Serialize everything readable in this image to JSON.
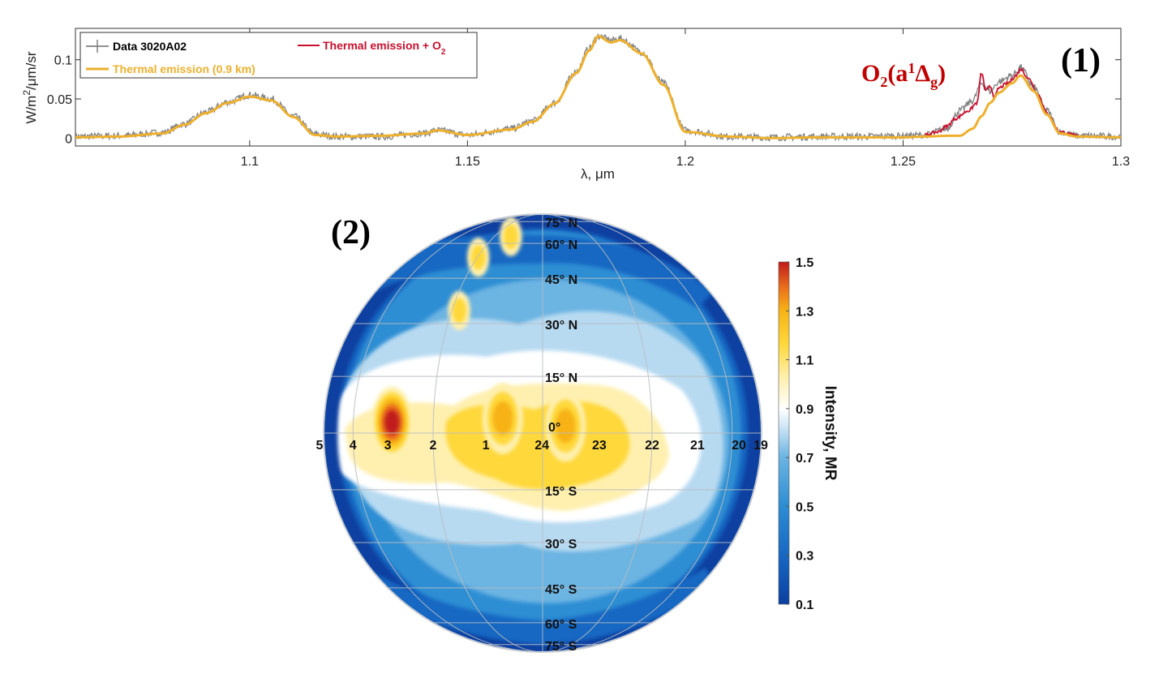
{
  "chart_data": [
    {
      "type": "line",
      "panel_label": "(1)",
      "xlabel": "λ, μm",
      "ylabel": "W/m²/μm/sr",
      "ylabel_parts": {
        "pre": "W/m",
        "sup": "2",
        "post": "/μm/sr"
      },
      "xlim": [
        1.06,
        1.3
      ],
      "ylim": [
        -0.01,
        0.14
      ],
      "xticks": [
        1.1,
        1.15,
        1.2,
        1.25,
        1.3
      ],
      "xtick_labels": [
        "1.1",
        "1.15",
        "1.2",
        "1.25",
        "1.3"
      ],
      "yticks": [
        0,
        0.05,
        0.1
      ],
      "ytick_labels": [
        "0",
        "0.05",
        "0.1"
      ],
      "grid": false,
      "legend_placement": "top-left",
      "annotation": {
        "text": "O2(a1Δg)",
        "parts": {
          "O": "O",
          "sub1": "2",
          "open": "(a",
          "sup": "1",
          "delta": "Δ",
          "sub2": "g",
          "close": ")"
        },
        "color": "#c00000",
        "near_x": 1.262
      },
      "series": [
        {
          "name": "Data 3020A02",
          "color": "#808080",
          "marker": "+",
          "x": [
            1.06,
            1.07,
            1.08,
            1.085,
            1.09,
            1.095,
            1.1,
            1.105,
            1.11,
            1.115,
            1.12,
            1.13,
            1.14,
            1.143,
            1.15,
            1.16,
            1.165,
            1.17,
            1.175,
            1.178,
            1.18,
            1.183,
            1.185,
            1.19,
            1.195,
            1.2,
            1.21,
            1.22,
            1.23,
            1.24,
            1.25,
            1.255,
            1.26,
            1.263,
            1.266,
            1.268,
            1.27,
            1.272,
            1.275,
            1.277,
            1.28,
            1.283,
            1.286,
            1.29,
            1.3
          ],
          "y": [
            0.002,
            0.003,
            0.007,
            0.018,
            0.033,
            0.046,
            0.055,
            0.05,
            0.028,
            0.005,
            0.002,
            0.002,
            0.006,
            0.01,
            0.004,
            0.012,
            0.022,
            0.045,
            0.085,
            0.115,
            0.13,
            0.125,
            0.127,
            0.11,
            0.07,
            0.01,
            0.002,
            0.001,
            0.002,
            0.002,
            0.003,
            0.004,
            0.012,
            0.035,
            0.048,
            0.07,
            0.06,
            0.072,
            0.08,
            0.09,
            0.065,
            0.035,
            0.008,
            0.003,
            0.002
          ]
        },
        {
          "name": "Thermal emission (0.9 km)",
          "color": "#eeb02c",
          "x": [
            1.06,
            1.07,
            1.08,
            1.085,
            1.09,
            1.095,
            1.1,
            1.105,
            1.11,
            1.115,
            1.12,
            1.13,
            1.14,
            1.143,
            1.15,
            1.16,
            1.165,
            1.17,
            1.175,
            1.178,
            1.18,
            1.183,
            1.185,
            1.19,
            1.195,
            1.2,
            1.21,
            1.22,
            1.23,
            1.24,
            1.25,
            1.255,
            1.26,
            1.263,
            1.266,
            1.268,
            1.27,
            1.272,
            1.275,
            1.277,
            1.28,
            1.283,
            1.286,
            1.29,
            1.3
          ],
          "y": [
            0.001,
            0.002,
            0.006,
            0.017,
            0.032,
            0.045,
            0.053,
            0.048,
            0.027,
            0.004,
            0.002,
            0.003,
            0.006,
            0.01,
            0.004,
            0.011,
            0.021,
            0.044,
            0.083,
            0.112,
            0.13,
            0.122,
            0.125,
            0.108,
            0.068,
            0.008,
            0.002,
            0.0,
            0.001,
            0.001,
            0.001,
            0.002,
            0.003,
            0.003,
            0.012,
            0.028,
            0.045,
            0.058,
            0.07,
            0.08,
            0.06,
            0.03,
            0.006,
            0.002,
            0.001
          ]
        },
        {
          "name": "Thermal emission + O2",
          "name_parts": {
            "pre": "Thermal emission + O",
            "sub": "2"
          },
          "color": "#c8102e",
          "x": [
            1.255,
            1.258,
            1.26,
            1.262,
            1.265,
            1.267,
            1.268,
            1.269,
            1.27,
            1.271,
            1.272,
            1.274,
            1.276,
            1.277,
            1.279,
            1.281,
            1.283,
            1.286,
            1.29
          ],
          "y": [
            0.004,
            0.008,
            0.015,
            0.025,
            0.035,
            0.045,
            0.083,
            0.06,
            0.066,
            0.052,
            0.064,
            0.07,
            0.08,
            0.088,
            0.075,
            0.055,
            0.032,
            0.008,
            0.003
          ]
        }
      ]
    },
    {
      "type": "heatmap",
      "subtype": "orthographic-globe-contour",
      "panel_label": "(2)",
      "colorbar": {
        "label": "Intensity, MR",
        "range": [
          0.1,
          1.5
        ],
        "ticks": [
          0.1,
          0.3,
          0.5,
          0.7,
          0.9,
          1.1,
          1.3,
          1.5
        ],
        "tick_labels": [
          "0.1",
          "0.3",
          "0.5",
          "0.7",
          "0.9",
          "1.1",
          "1.3",
          "1.5"
        ],
        "colors": [
          "#0b3fa0",
          "#1767c2",
          "#2e8ed3",
          "#6cb4e2",
          "#b7daf1",
          "#ffffff",
          "#fff0b0",
          "#ffd83a",
          "#f7b214",
          "#e86a1c",
          "#c01a1a"
        ]
      },
      "latitude_labels": [
        "75° N",
        "60° N",
        "45° N",
        "30° N",
        "15° N",
        "0°",
        "15° S",
        "30° S",
        "45° S",
        "60° S",
        "75° S"
      ],
      "latitudes": [
        75,
        60,
        45,
        30,
        15,
        0,
        -15,
        -30,
        -45,
        -60,
        -75
      ],
      "local_time_labels": [
        "5",
        "4",
        "3",
        "2",
        "1",
        "24",
        "23",
        "22",
        "21",
        "20",
        "19"
      ],
      "local_times": [
        5,
        4,
        3,
        2,
        1,
        24,
        23,
        22,
        21,
        20,
        19
      ],
      "hotspots": [
        {
          "name": "peak-3h",
          "lt": 2.9,
          "lat": 2,
          "value": 1.5
        },
        {
          "name": "peak-23h",
          "lt": 23.6,
          "lat": 1,
          "value": 1.3
        },
        {
          "name": "peak-1h",
          "lt": 0.7,
          "lat": 3,
          "value": 1.25
        },
        {
          "name": "north-spot-a",
          "lt": 1.9,
          "lat": 52,
          "value": 1.1
        },
        {
          "name": "north-spot-b",
          "lt": 1.2,
          "lat": 62,
          "value": 1.1
        },
        {
          "name": "north-spot-c",
          "lt": 1.8,
          "lat": 33,
          "value": 1.05
        }
      ],
      "region_summary": {
        "equatorial_band_value": 1.1,
        "mid_latitude_value": 0.55,
        "high_latitude_value": 0.25,
        "limb_value": 0.15
      }
    }
  ]
}
